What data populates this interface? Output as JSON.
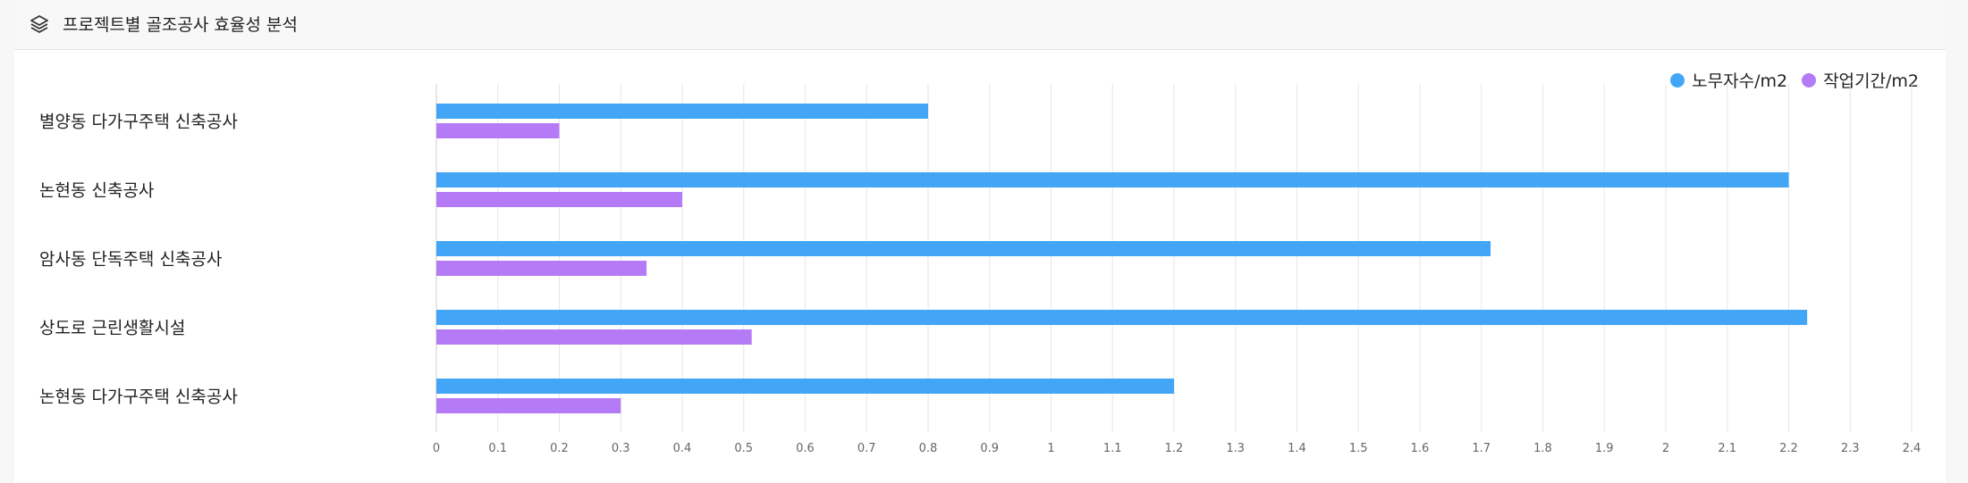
{
  "panel": {
    "title": "프로젝트별 골조공사 효율성 분석",
    "icon": "layers-icon"
  },
  "colors": {
    "series1": "#42a5f5",
    "series2": "#b57bf7",
    "grid": "#e6e6e6"
  },
  "chart_data": {
    "type": "bar",
    "orientation": "horizontal",
    "title": "프로젝트별 골조공사 효율성 분석",
    "categories": [
      "별양동 다가구주택 신축공사",
      "논현동 신축공사",
      "암사동 단독주택 신축공사",
      "상도로 근린생활시설",
      "논현동 다가구주택 신축공사"
    ],
    "series": [
      {
        "name": "노무자수/m2",
        "values": [
          0.8,
          2.2,
          1.715,
          2.23,
          1.2
        ]
      },
      {
        "name": "작업기간/m2",
        "values": [
          0.2,
          0.4,
          0.342,
          0.513,
          0.3
        ]
      }
    ],
    "xlim": [
      0,
      2.4
    ],
    "xticks": [
      "0",
      "0.1",
      "0.2",
      "0.3",
      "0.4",
      "0.5",
      "0.6",
      "0.7",
      "0.8",
      "0.9",
      "1",
      "1.1",
      "1.2",
      "1.3",
      "1.4",
      "1.5",
      "1.6",
      "1.7",
      "1.8",
      "1.9",
      "2",
      "2.1",
      "2.2",
      "2.3",
      "2.4"
    ],
    "grid": true,
    "legend": "top-right"
  }
}
